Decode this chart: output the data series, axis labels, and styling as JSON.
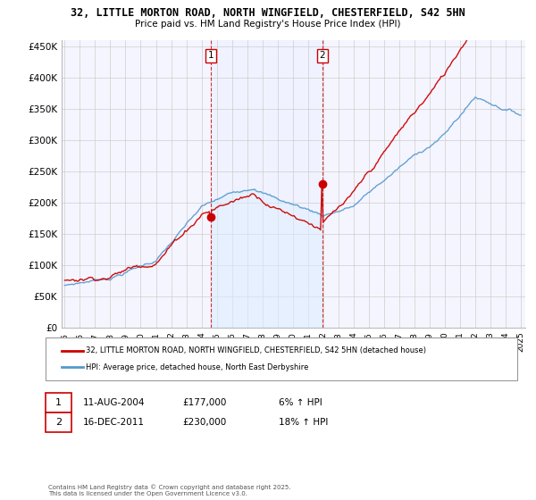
{
  "title_line1": "32, LITTLE MORTON ROAD, NORTH WINGFIELD, CHESTERFIELD, S42 5HN",
  "title_line2": "Price paid vs. HM Land Registry's House Price Index (HPI)",
  "ylabel_ticks": [
    "£0",
    "£50K",
    "£100K",
    "£150K",
    "£200K",
    "£250K",
    "£300K",
    "£350K",
    "£400K",
    "£450K"
  ],
  "ytick_values": [
    0,
    50000,
    100000,
    150000,
    200000,
    250000,
    300000,
    350000,
    400000,
    450000
  ],
  "sale1_date": "11-AUG-2004",
  "sale1_price": 177000,
  "sale1_hpi": "6% ↑ HPI",
  "sale1_label": "1",
  "sale2_date": "16-DEC-2011",
  "sale2_price": 230000,
  "sale2_hpi": "18% ↑ HPI",
  "sale2_label": "2",
  "legend_line1": "32, LITTLE MORTON ROAD, NORTH WINGFIELD, CHESTERFIELD, S42 5HN (detached house)",
  "legend_line2": "HPI: Average price, detached house, North East Derbyshire",
  "footer": "Contains HM Land Registry data © Crown copyright and database right 2025.\nThis data is licensed under the Open Government Licence v3.0.",
  "line_color_red": "#cc0000",
  "line_color_blue": "#5599cc",
  "fill_color_blue": "#ddeeff",
  "vline_color": "#cc0000",
  "background_color": "#ffffff",
  "plot_bg_color": "#f5f5ff",
  "grid_color": "#cccccc",
  "xstart_year": 1995,
  "xend_year": 2025,
  "sale1_year": 2004.625,
  "sale2_year": 2011.958
}
